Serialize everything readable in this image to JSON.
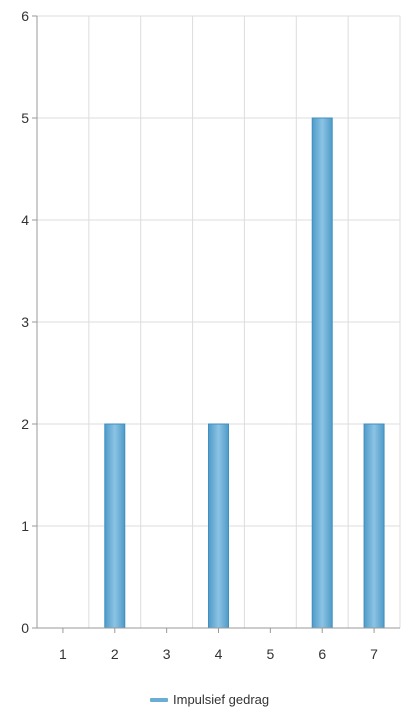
{
  "chart_data": {
    "type": "bar",
    "categories": [
      "1",
      "2",
      "3",
      "4",
      "5",
      "6",
      "7"
    ],
    "series": [
      {
        "name": "Impulsief gedrag",
        "values": [
          0,
          2,
          0,
          2,
          0,
          5,
          2
        ]
      }
    ],
    "ylim": [
      0,
      6
    ],
    "yticks": [
      "0",
      "1",
      "2",
      "3",
      "4",
      "5",
      "6"
    ],
    "grid": true,
    "legend": "bottom-center",
    "colors": {
      "bar": "#6aaed6",
      "bar_edge": "#3f8fbf",
      "grid": "#dddddd",
      "axis": "#999999"
    }
  }
}
